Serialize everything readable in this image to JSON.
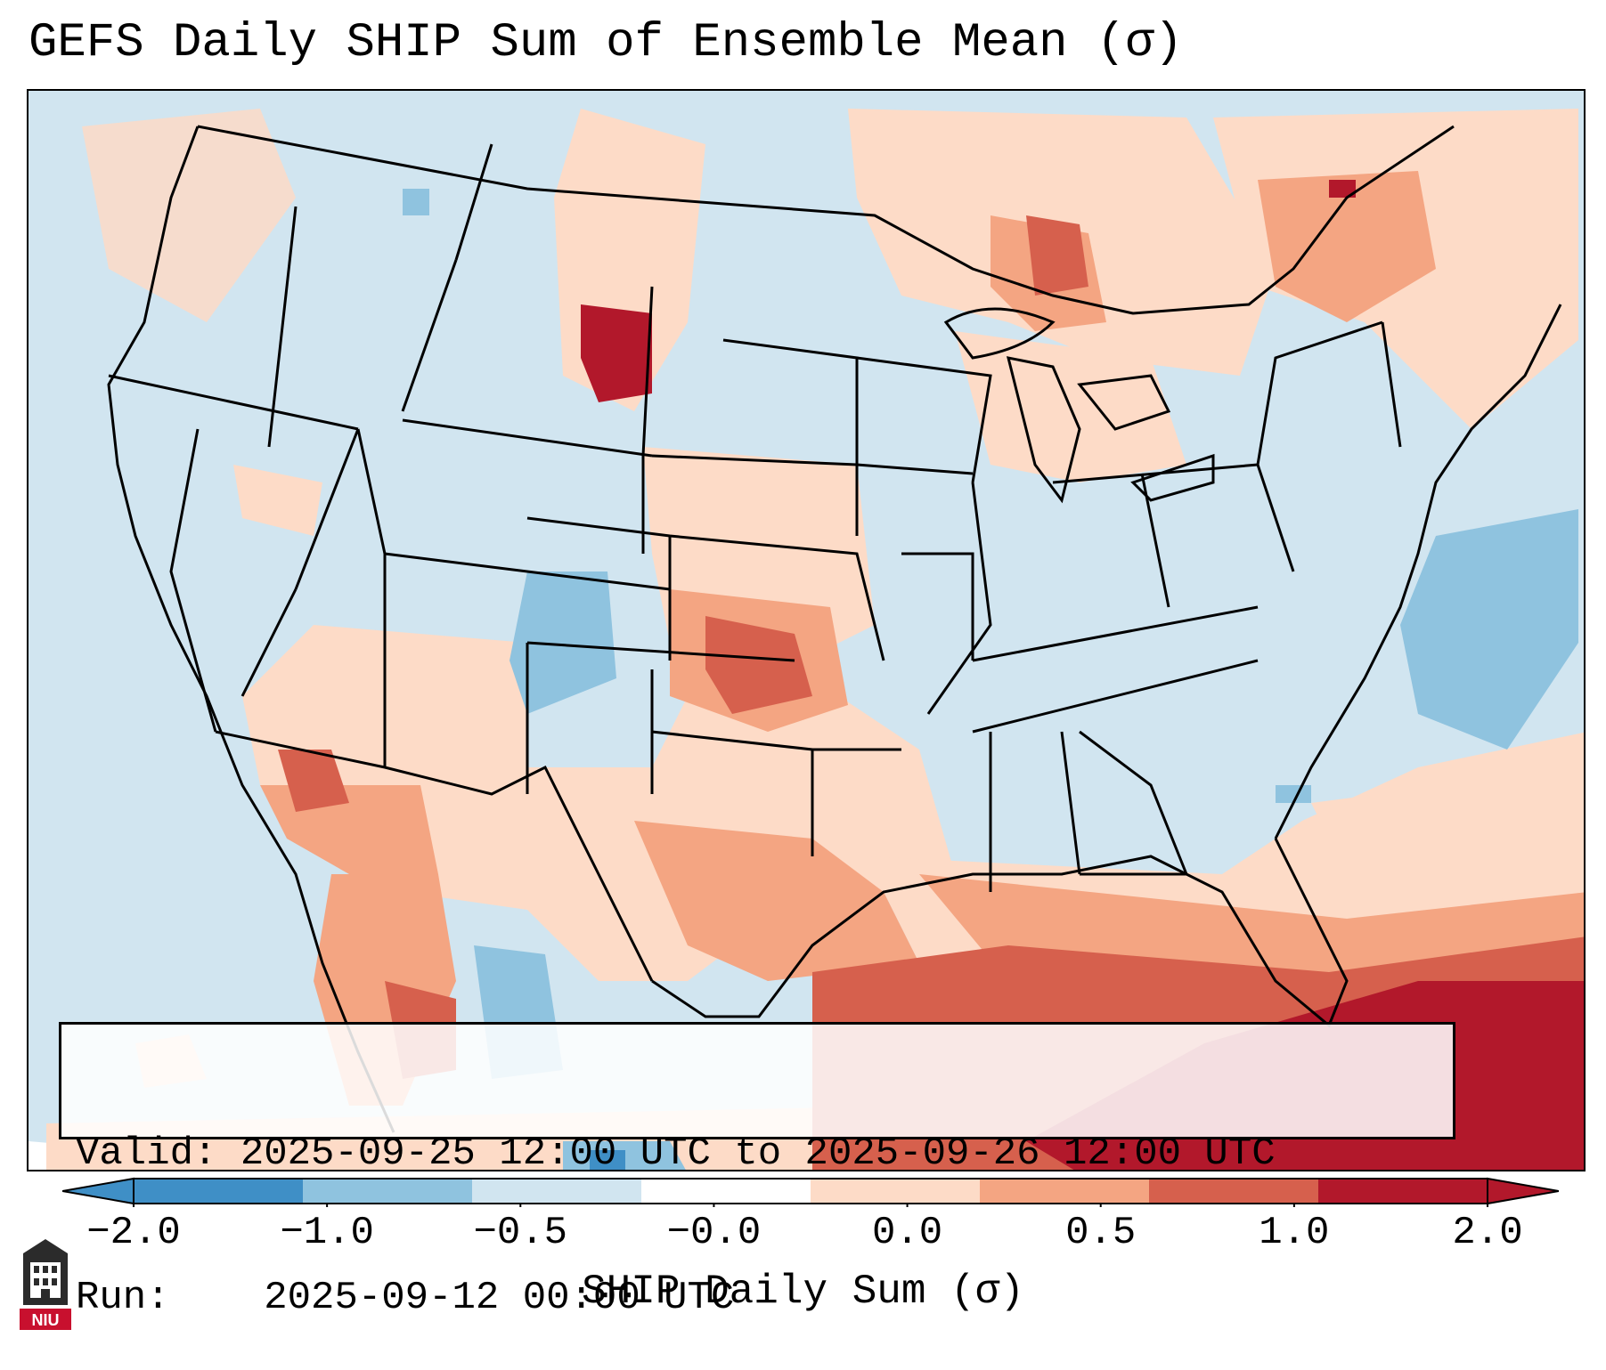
{
  "title": "GEFS Daily SHIP Sum of Ensemble Mean (σ)",
  "info": {
    "valid_label": "Valid:",
    "valid_value": "2025-09-25 12:00 UTC to 2025-09-26 12:00 UTC",
    "run_label": "Run:",
    "run_value": "2025-09-12 00:00 UTC"
  },
  "colorbar": {
    "label": "SHIP Daily Sum (σ)",
    "ticks": [
      "−2.0",
      "−1.0",
      "−0.5",
      "−0.0",
      "0.0",
      "0.5",
      "1.0",
      "2.0"
    ],
    "colors": [
      "#3f8fc6",
      "#8fc3df",
      "#d1e5f0",
      "#ffffff",
      "#fddbc7",
      "#f4a582",
      "#d6604d",
      "#b2182b"
    ]
  },
  "logo": {
    "text": "NIU",
    "color": "#c8102e"
  }
}
